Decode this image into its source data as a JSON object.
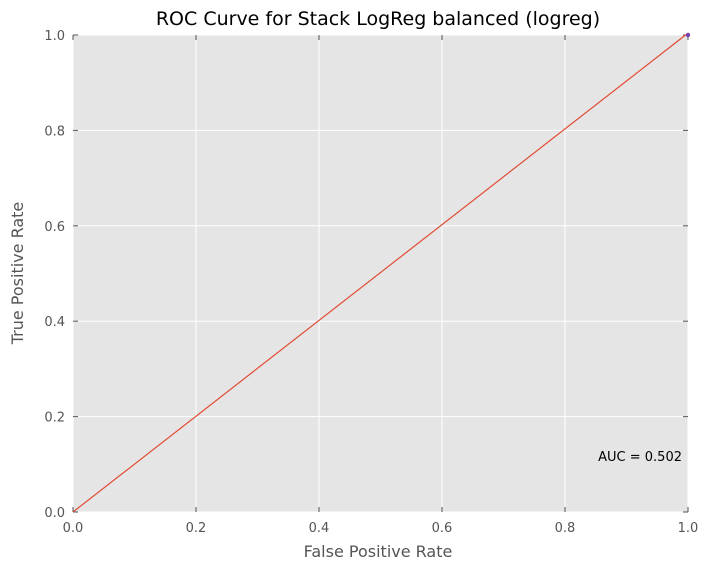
{
  "chart_data": {
    "type": "line",
    "title": "ROC Curve for Stack LogReg balanced (logreg)",
    "xlabel": "False Positive Rate",
    "ylabel": "True Positive Rate",
    "xlim": [
      0.0,
      1.0
    ],
    "ylim": [
      0.0,
      1.0
    ],
    "grid": true,
    "x_ticks": [
      0.0,
      0.2,
      0.4,
      0.6,
      0.8,
      1.0
    ],
    "y_ticks": [
      0.0,
      0.2,
      0.4,
      0.6,
      0.8,
      1.0
    ],
    "x_tick_labels": [
      "0.0",
      "0.2",
      "0.4",
      "0.6",
      "0.8",
      "1.0"
    ],
    "y_tick_labels": [
      "0.0",
      "0.2",
      "0.4",
      "0.6",
      "0.8",
      "1.0"
    ],
    "series": [
      {
        "name": "ROC",
        "color": "#e24a33",
        "x": [
          0.0,
          0.996,
          1.0
        ],
        "y": [
          0.0,
          1.0,
          1.0
        ]
      }
    ],
    "markers": [
      {
        "name": "curve-end-marker",
        "x": 1.0,
        "y": 1.0,
        "color": "#7a3fb0"
      }
    ],
    "annotation": "AUC = 0.502",
    "colors": {
      "plot_bg": "#e5e5e5",
      "grid": "#ffffff",
      "tick": "#555555"
    }
  }
}
